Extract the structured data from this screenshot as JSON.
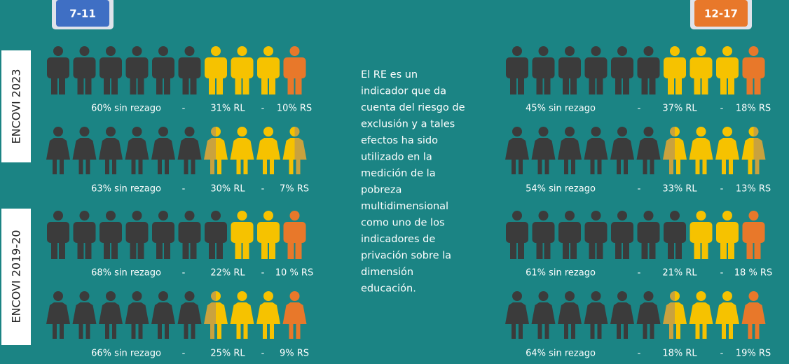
{
  "badges": {
    "left": "7-11",
    "right": "12-17"
  },
  "surveys": [
    "ENCOVI 2023",
    "ENCOVI 2019-20"
  ],
  "rows": [
    {
      "none": "60% sin rezago",
      "sep": "-",
      "rl": "31% RL",
      "rs": "10% RS"
    },
    {
      "none": "63% sin rezago",
      "sep": "-",
      "rl": "30% RL",
      "rs": "7% RS"
    },
    {
      "none": "68% sin rezago",
      "sep": "-",
      "rl": "22% RL",
      "rs": "10 % RS"
    },
    {
      "none": "66% sin rezago",
      "sep": "-",
      "rl": "25% RL",
      "rs": "9% RS"
    },
    {
      "none": "45% sin rezago",
      "sep": "-",
      "rl": "37% RL",
      "rs": "18% RS"
    },
    {
      "none": "54% sin rezago",
      "sep": "-",
      "rl": "33% RL",
      "rs": "13% RS"
    },
    {
      "none": "61% sin rezago",
      "sep": "-",
      "rl": "21% RL",
      "rs": "18 % RS"
    },
    {
      "none": "64% sin rezago",
      "sep": "-",
      "rl": "18% RL",
      "rs": "19% RS"
    }
  ],
  "description": [
    "El RE es un",
    "indicador que da",
    "cuenta del riesgo de",
    "exclusión y a tales",
    "efectos ha sido",
    "utilizado en la",
    "medición de la",
    "pobreza",
    "multidimensional",
    "como uno de los",
    "indicadores de",
    "privación sobre la",
    "dimensión",
    "educación."
  ]
}
